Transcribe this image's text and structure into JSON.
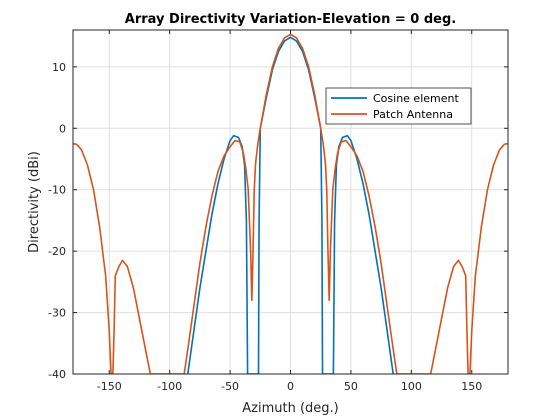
{
  "chart_data": {
    "type": "line",
    "title": "Array Directivity Variation-Elevation  = 0 deg.",
    "xlabel": "Azimuth (deg.)",
    "ylabel": "Directivity (dBi)",
    "xlim": [
      -180,
      180
    ],
    "ylim": [
      -40,
      16
    ],
    "xticks": [
      -150,
      -100,
      -50,
      0,
      50,
      100,
      150
    ],
    "yticks": [
      -40,
      -30,
      -20,
      -10,
      0,
      10
    ],
    "grid": true,
    "legend_position": "top-right",
    "series": [
      {
        "name": "Cosine element",
        "color": "#0072BD",
        "points": [
          [
            -85,
            -40
          ],
          [
            -80,
            -33
          ],
          [
            -75,
            -26
          ],
          [
            -70,
            -20
          ],
          [
            -65,
            -14
          ],
          [
            -60,
            -9
          ],
          [
            -55,
            -5
          ],
          [
            -50,
            -2
          ],
          [
            -47,
            -1.2
          ],
          [
            -43,
            -1.5
          ],
          [
            -40,
            -3
          ],
          [
            -38,
            -6
          ],
          [
            -36.5,
            -15
          ],
          [
            -35.5,
            -40
          ],
          [
            -35.5,
            -40
          ],
          [
            -30,
            -40
          ],
          [
            -26.5,
            -40
          ],
          [
            -26,
            -15
          ],
          [
            -25,
            0
          ],
          [
            -20,
            5
          ],
          [
            -15,
            9.5
          ],
          [
            -10,
            12.5
          ],
          [
            -5,
            14.2
          ],
          [
            0,
            14.8
          ],
          [
            5,
            14.2
          ],
          [
            10,
            12.5
          ],
          [
            15,
            9.5
          ],
          [
            20,
            5
          ],
          [
            25,
            0
          ],
          [
            26,
            -15
          ],
          [
            26.5,
            -40
          ],
          [
            30,
            -40
          ],
          [
            35.5,
            -40
          ],
          [
            36.5,
            -15
          ],
          [
            38,
            -6
          ],
          [
            40,
            -3
          ],
          [
            43,
            -1.5
          ],
          [
            47,
            -1.2
          ],
          [
            50,
            -2
          ],
          [
            55,
            -5
          ],
          [
            60,
            -9
          ],
          [
            65,
            -14
          ],
          [
            70,
            -20
          ],
          [
            75,
            -26
          ],
          [
            80,
            -33
          ],
          [
            85,
            -40
          ]
        ]
      },
      {
        "name": "Patch Antenna",
        "color": "#D95319",
        "points": [
          [
            -180,
            -2.5
          ],
          [
            -177,
            -2.6
          ],
          [
            -173,
            -3.5
          ],
          [
            -168,
            -6
          ],
          [
            -163,
            -10
          ],
          [
            -158,
            -16
          ],
          [
            -153,
            -24
          ],
          [
            -150,
            -33
          ],
          [
            -148.5,
            -40
          ],
          [
            -147,
            -40
          ],
          [
            -146,
            -33
          ],
          [
            -145,
            -24
          ],
          [
            -142,
            -22.5
          ],
          [
            -139,
            -21.5
          ],
          [
            -135,
            -22.5
          ],
          [
            -130,
            -26
          ],
          [
            -125,
            -31
          ],
          [
            -120,
            -36
          ],
          [
            -116,
            -40
          ],
          [
            -88,
            -40
          ],
          [
            -85,
            -36
          ],
          [
            -80,
            -29
          ],
          [
            -75,
            -22
          ],
          [
            -70,
            -16
          ],
          [
            -65,
            -11
          ],
          [
            -60,
            -7
          ],
          [
            -55,
            -4.5
          ],
          [
            -50,
            -3
          ],
          [
            -46,
            -2
          ],
          [
            -42,
            -2.2
          ],
          [
            -39,
            -4
          ],
          [
            -37,
            -6.5
          ],
          [
            -35,
            -10
          ],
          [
            -33,
            -20
          ],
          [
            -32,
            -28
          ],
          [
            -31,
            -20
          ],
          [
            -30,
            -10
          ],
          [
            -29,
            -6
          ],
          [
            -28.5,
            -5
          ],
          [
            -27,
            -2.5
          ],
          [
            -25,
            0
          ],
          [
            -20,
            5.5
          ],
          [
            -15,
            10
          ],
          [
            -10,
            13
          ],
          [
            -5,
            14.7
          ],
          [
            0,
            15.3
          ],
          [
            5,
            14.7
          ],
          [
            10,
            13
          ],
          [
            15,
            10
          ],
          [
            20,
            5.5
          ],
          [
            25,
            0
          ],
          [
            27,
            -2.5
          ],
          [
            28.5,
            -5
          ],
          [
            29,
            -6
          ],
          [
            30,
            -10
          ],
          [
            31,
            -20
          ],
          [
            32,
            -28
          ],
          [
            33,
            -20
          ],
          [
            35,
            -10
          ],
          [
            37,
            -6.5
          ],
          [
            39,
            -4
          ],
          [
            42,
            -2.2
          ],
          [
            46,
            -2
          ],
          [
            50,
            -3
          ],
          [
            55,
            -4.5
          ],
          [
            60,
            -7
          ],
          [
            65,
            -11
          ],
          [
            70,
            -16
          ],
          [
            75,
            -22
          ],
          [
            80,
            -29
          ],
          [
            85,
            -36
          ],
          [
            88,
            -40
          ],
          [
            116,
            -40
          ],
          [
            120,
            -36
          ],
          [
            125,
            -31
          ],
          [
            130,
            -26
          ],
          [
            135,
            -22.5
          ],
          [
            139,
            -21.5
          ],
          [
            142,
            -22.5
          ],
          [
            145,
            -24
          ],
          [
            146,
            -33
          ],
          [
            147,
            -40
          ],
          [
            148.5,
            -40
          ],
          [
            150,
            -33
          ],
          [
            153,
            -24
          ],
          [
            158,
            -16
          ],
          [
            163,
            -10
          ],
          [
            168,
            -6
          ],
          [
            173,
            -3.5
          ],
          [
            177,
            -2.6
          ],
          [
            180,
            -2.5
          ]
        ]
      }
    ]
  }
}
